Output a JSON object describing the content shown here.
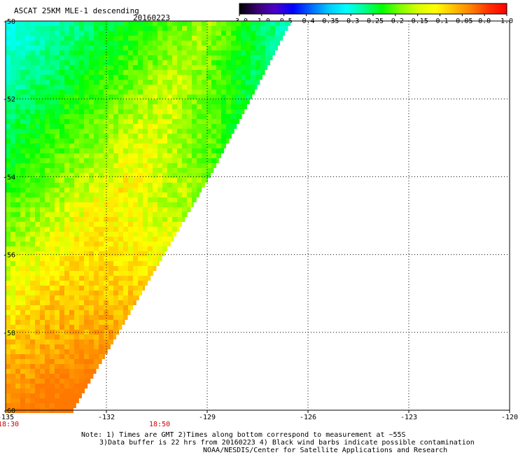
{
  "header": {
    "title": "ASCAT 25KM MLE-1 descending",
    "date": "20160223"
  },
  "colorbar": {
    "labels": [
      "-3.0",
      "-1.0",
      "-0.5",
      "-0.4",
      "-0.35",
      "-0.3",
      "-0.25",
      "-0.2",
      "-0.15",
      "-0.1",
      "-0.05",
      "0.0",
      "1.0"
    ],
    "colors": [
      "#000000",
      "#4b0082",
      "#0000ff",
      "#0088ff",
      "#00ffff",
      "#00ff80",
      "#00ff00",
      "#80ff00",
      "#ffff00",
      "#ffc000",
      "#ff8000",
      "#ff0000"
    ]
  },
  "map": {
    "lon_labels": [
      "-135",
      "-132",
      "-129",
      "-126",
      "-123",
      "-120"
    ],
    "lat_labels": [
      "-50",
      "-52",
      "-54",
      "-56",
      "-58",
      "-60"
    ],
    "lon_range": [
      -135,
      -120
    ],
    "lat_range": [
      -50,
      -60
    ],
    "swath_edge": [
      [
        -126.5,
        -50
      ],
      [
        -128.8,
        -53.8
      ],
      [
        -133.0,
        -60
      ]
    ],
    "times": [
      {
        "label": "18:30",
        "lon": -135
      },
      {
        "label": "18:50",
        "lon": -130.5
      }
    ],
    "time_color": "#cc0000"
  },
  "notes": {
    "line1": "Note: 1) Times are GMT 2)Times along bottom correspond to measurement at ~55S",
    "line2": "3)Data buffer is 22 hrs from 20160223 4) Black wind barbs indicate possible contamination",
    "line3": "NOAA/NESDIS/Center for Satellite Applications and Research"
  }
}
